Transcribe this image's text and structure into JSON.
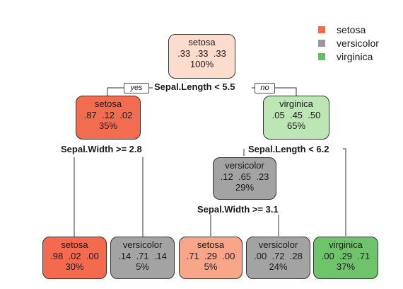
{
  "legend": [
    {
      "label": "setosa",
      "color": "#f46d43"
    },
    {
      "label": "versicolor",
      "color": "#999999"
    },
    {
      "label": "virginica",
      "color": "#66bd63"
    }
  ],
  "edge_labels": {
    "yes": "yes",
    "no": "no"
  },
  "nodes": {
    "root": {
      "class": "setosa",
      "probs": ".33  .33  .33",
      "pct": "100%",
      "fill": "#fcdccd"
    },
    "n2": {
      "class": "setosa",
      "probs": ".87  .12  .02",
      "pct": "35%",
      "fill": "#f26c4f"
    },
    "n3": {
      "class": "virginica",
      "probs": ".05  .45  .50",
      "pct": "65%",
      "fill": "#bde6b5"
    },
    "n6": {
      "class": "versicolor",
      "probs": ".12  .65  .23",
      "pct": "29%",
      "fill": "#a3a3a3"
    },
    "l1": {
      "class": "setosa",
      "probs": ".98  .02  .00",
      "pct": "30%",
      "fill": "#f46a4e"
    },
    "l2": {
      "class": "versicolor",
      "probs": ".14  .71  .14",
      "pct": "5%",
      "fill": "#a3a3a3"
    },
    "l3": {
      "class": "setosa",
      "probs": ".71  .29  .00",
      "pct": "5%",
      "fill": "#f7a68a"
    },
    "l4": {
      "class": "versicolor",
      "probs": ".00  .72  .28",
      "pct": "24%",
      "fill": "#a3a3a3"
    },
    "l5": {
      "class": "virginica",
      "probs": ".00  .29  .71",
      "pct": "37%",
      "fill": "#6fc46b"
    }
  },
  "splits": {
    "root": "Sepal.Length < 5.5",
    "n2": "Sepal.Width >= 2.8",
    "n3": "Sepal.Length < 6.2",
    "n6": "Sepal.Width >= 3.1"
  }
}
